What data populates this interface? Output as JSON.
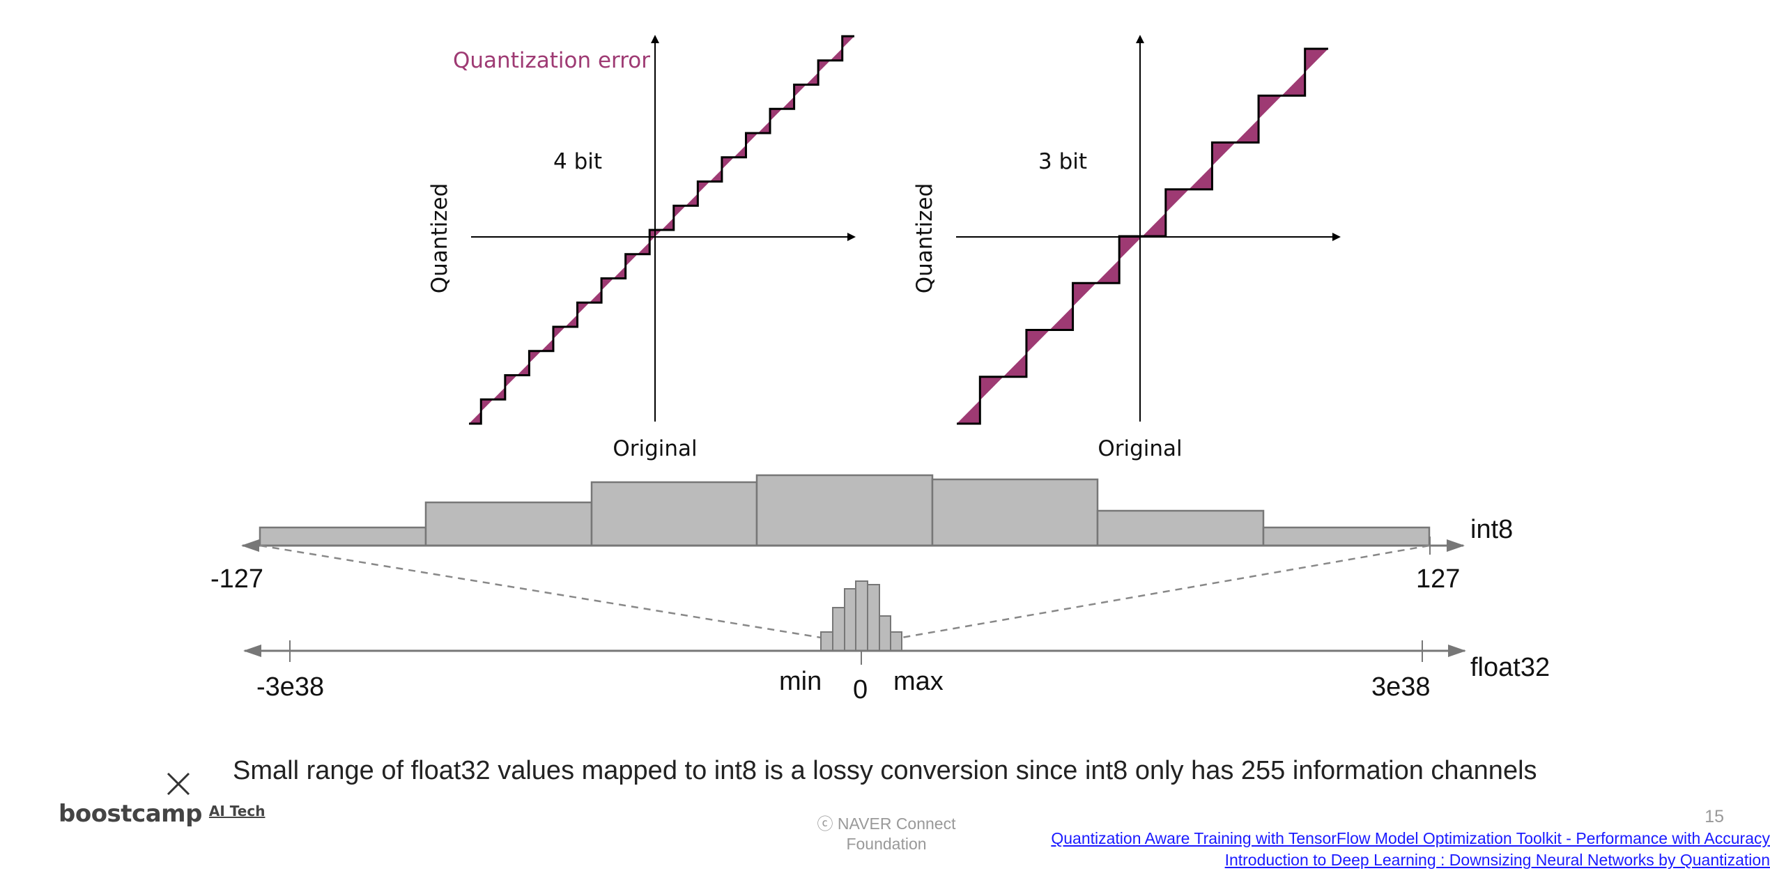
{
  "plots": {
    "error_label": "Quantization error",
    "left": {
      "bits_label": "4 bit",
      "ylabel": "Quantized",
      "xlabel": "Original",
      "steps": 16
    },
    "right": {
      "bits_label": "3 bit",
      "ylabel": "Quantized",
      "xlabel": "Original",
      "steps": 8
    }
  },
  "mapping": {
    "int8_label": "int8",
    "int8_min": "-127",
    "int8_max": "127",
    "float32_label": "float32",
    "float32_min": "-3e38",
    "float32_max": "3e38",
    "min_label": "min",
    "zero_label": "0",
    "max_label": "max"
  },
  "caption": "Small range of float32 values mapped to int8 is a lossy conversion since int8 only has 255 information channels",
  "footer": {
    "logo_main": "boostcamp",
    "logo_sub": "AI Tech",
    "copyright_line1": "ⓒ  NAVER Connect",
    "copyright_line2": "Foundation",
    "page_number": "15",
    "links": [
      "Quantization Aware Training with TensorFlow Model Optimization Toolkit - Performance with Accuracy",
      "Introduction to Deep Learning : Downsizing Neural Networks by Quantization"
    ]
  },
  "colors": {
    "error_fill": "#9e3a73",
    "bar_fill": "#bbbbbb",
    "bar_stroke": "#777777",
    "axis": "#000000",
    "link": "#1a1aff"
  }
}
